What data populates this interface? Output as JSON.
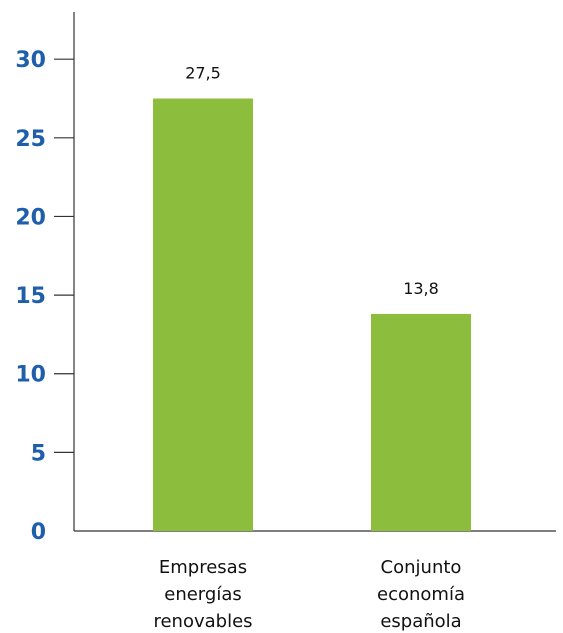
{
  "chart_data": {
    "type": "bar",
    "categories": [
      [
        "Empresas",
        "energías",
        "renovables"
      ],
      [
        "Conjunto",
        "economía",
        "española"
      ]
    ],
    "values": [
      27.5,
      13.8
    ],
    "value_labels": [
      "27,5",
      "13,8"
    ],
    "yticks": [
      0,
      5,
      10,
      15,
      20,
      25,
      30
    ],
    "ylim": [
      0,
      33
    ],
    "grid": false,
    "legend": "none",
    "title": "",
    "xlabel": "",
    "ylabel": "",
    "colors": {
      "bar": "#8cbd3c",
      "axis": "#333333",
      "ytick_label": "#1f5ea8",
      "text": "#111111"
    }
  }
}
